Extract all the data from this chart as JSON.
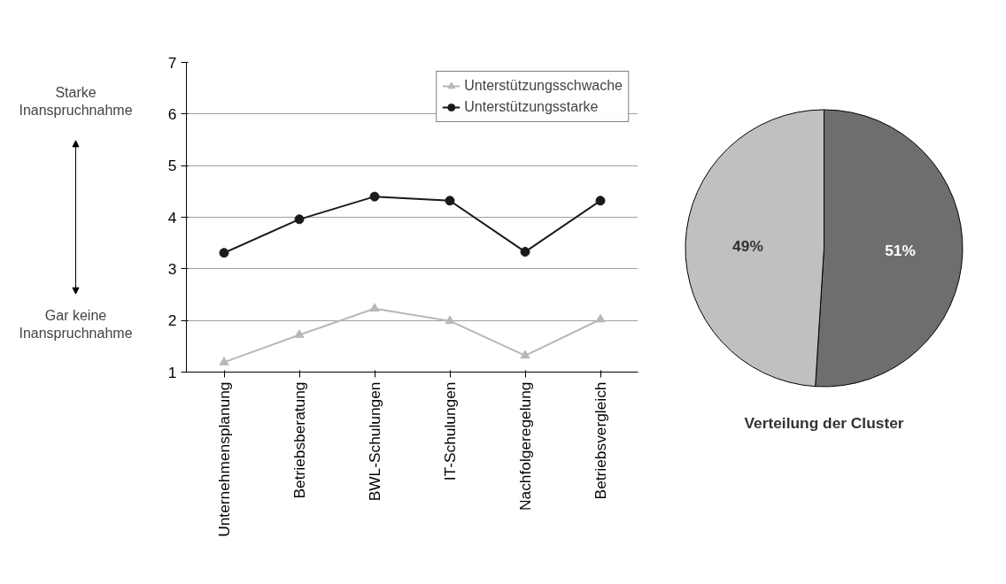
{
  "chart_data": [
    {
      "type": "line",
      "categories": [
        "Unternehmensplanung",
        "Betriebsberatung",
        "BWL-Schulungen",
        "IT-Schulungen",
        "Nachfolgeregelung",
        "Betriebsvergleich"
      ],
      "series": [
        {
          "name": "Unterstützungsschwache",
          "color": "#b8b8b8",
          "marker": "triangle",
          "values": [
            1.19,
            1.72,
            2.23,
            1.99,
            1.32,
            2.02
          ]
        },
        {
          "name": "Unterstützungsstarke",
          "color": "#1a1a1a",
          "marker": "circle",
          "values": [
            3.31,
            3.96,
            4.4,
            4.32,
            3.33,
            4.32
          ]
        }
      ],
      "ylim": [
        1,
        7
      ],
      "yticks": [
        1,
        2,
        3,
        4,
        5,
        6,
        7
      ],
      "grid": "y",
      "legend": "top right",
      "line_style": "solid",
      "annotations": [
        "Starke Inanspruchnahme",
        "Gar keine Inanspruchnahme"
      ]
    },
    {
      "type": "pie",
      "title": "Verteilung der Cluster",
      "categories": [
        null,
        null
      ],
      "values": [
        51,
        49
      ],
      "colors": [
        "#6d6e70",
        "#c0c0c0"
      ],
      "value_labels": [
        "51%",
        "49%"
      ]
    }
  ]
}
